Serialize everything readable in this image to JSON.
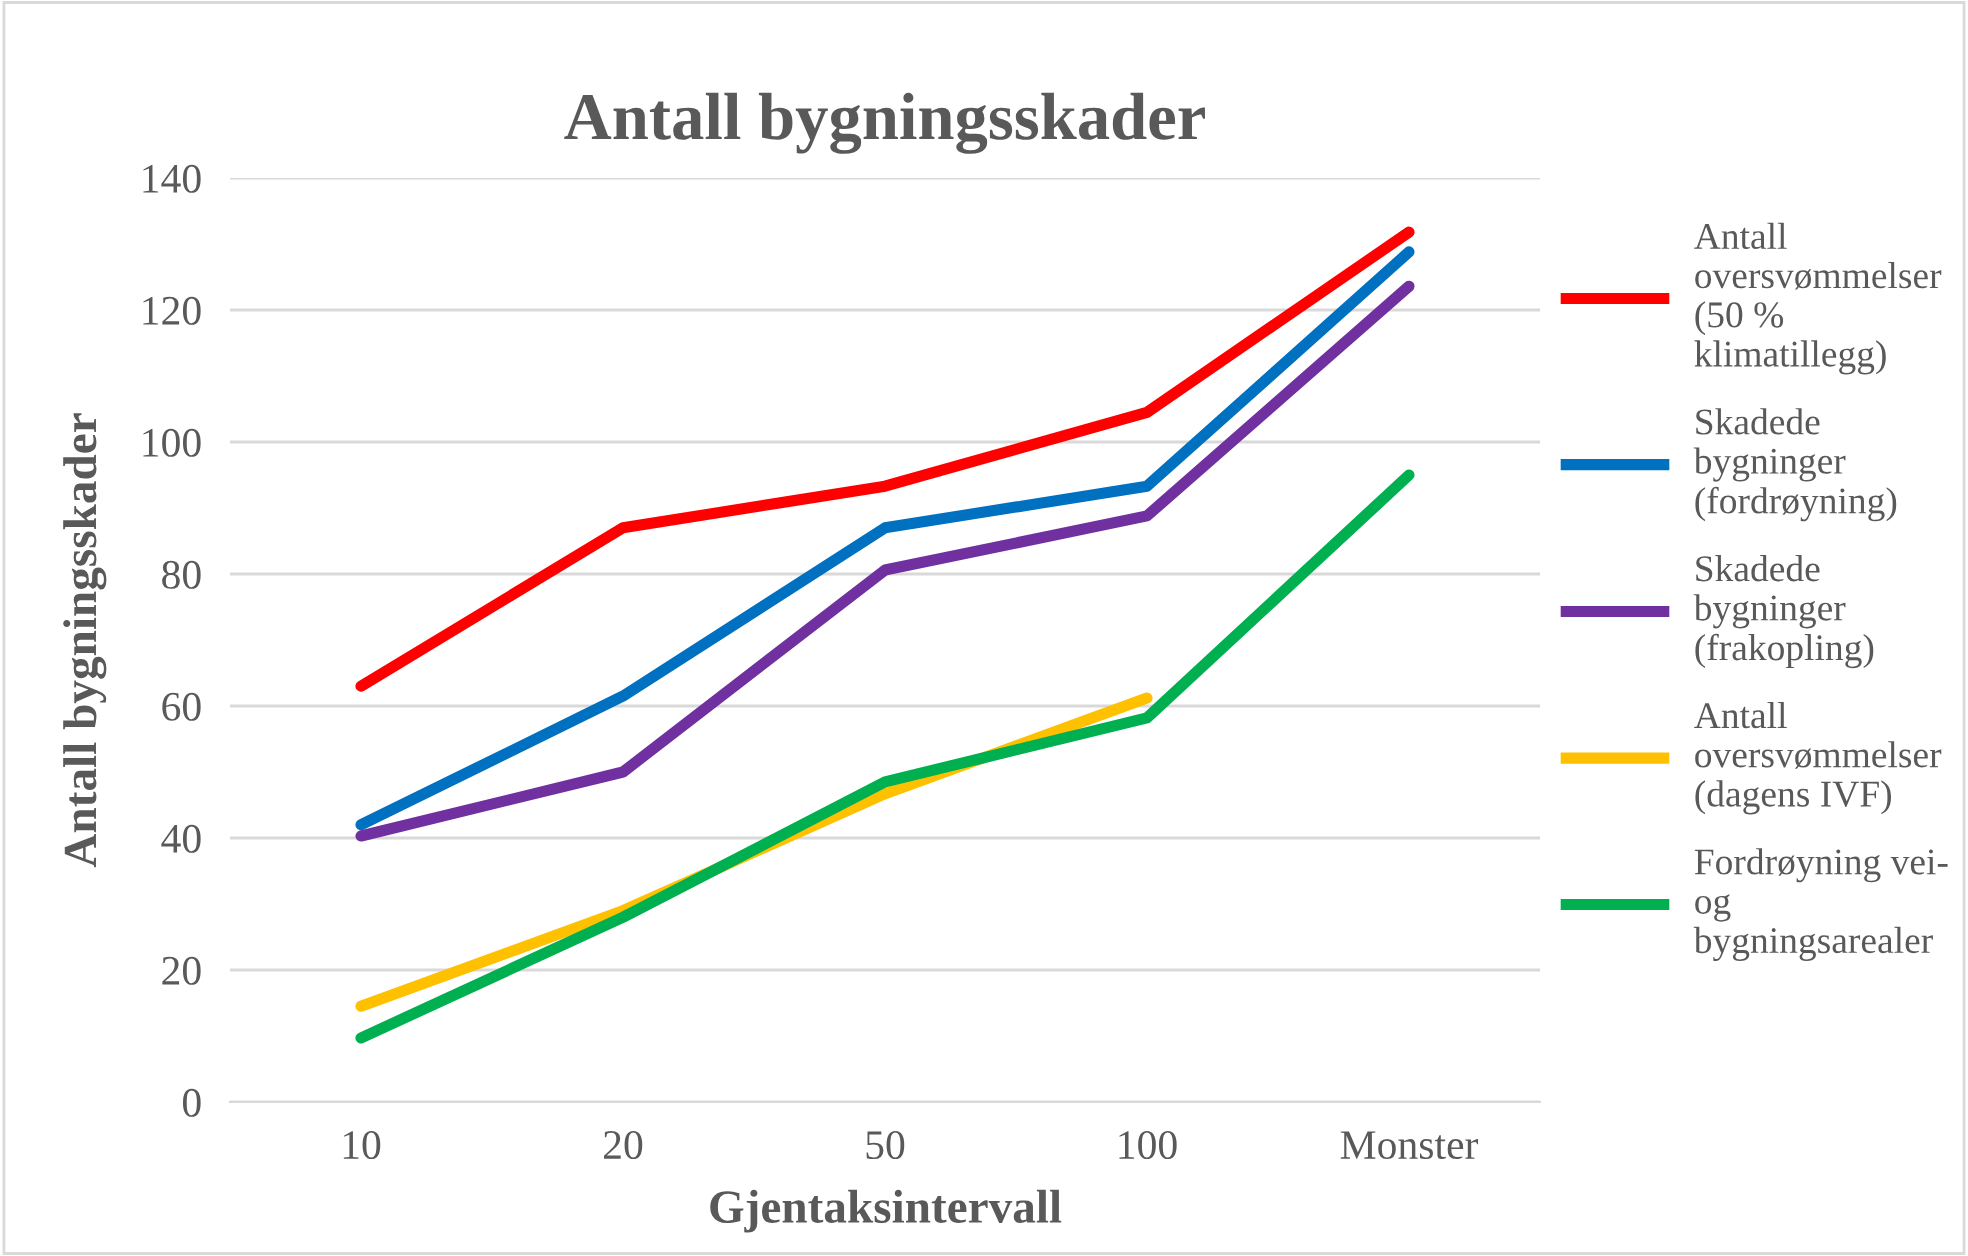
{
  "chart_data": {
    "type": "line",
    "title": "Antall bygningsskader",
    "xlabel": "Gjentaksintervall",
    "ylabel": "Antall bygningsskader",
    "categories": [
      "10",
      "20",
      "50",
      "100",
      "Monster"
    ],
    "ylim": [
      0,
      140
    ],
    "yticks": [
      0,
      20,
      40,
      60,
      80,
      100,
      120,
      140
    ],
    "grid": "y",
    "legend": "right",
    "marker": "none",
    "line_style": "solid",
    "series": [
      {
        "name": "Antall\noversvømmelser\n(50 %\nklimatillegg)",
        "color": "#ff0000",
        "values": [
          63,
          87,
          93.3,
          104.5,
          131.8
        ]
      },
      {
        "name": "Skadede\nbygninger\n(fordrøyning)",
        "color": "#0070c0",
        "values": [
          42,
          61.5,
          87,
          93.3,
          128.8
        ]
      },
      {
        "name": "Skadede\nbygninger\n(frakopling)",
        "color": "#7030a0",
        "values": [
          40.3,
          50,
          80.6,
          88.8,
          123.6
        ]
      },
      {
        "name": "Antall\noversvømmelser\n(dagens IVF)",
        "color": "#ffc000",
        "values": [
          14.5,
          29,
          46.7,
          61.2,
          null
        ]
      },
      {
        "name": "Fordrøyning vei-\nog\nbygningsarealer",
        "color": "#00b050",
        "values": [
          9.7,
          28,
          48.5,
          58.2,
          95
        ]
      }
    ]
  }
}
